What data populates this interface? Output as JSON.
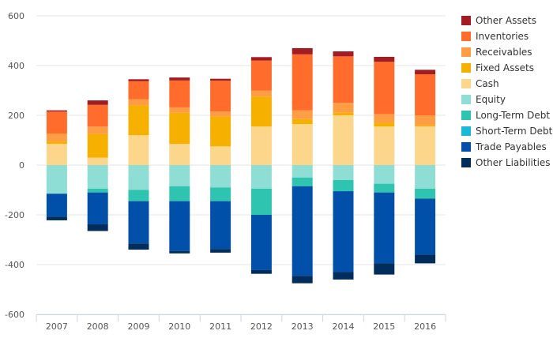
{
  "chart_data": {
    "type": "bar",
    "stacked": true,
    "categories": [
      "2007",
      "2008",
      "2009",
      "2010",
      "2011",
      "2012",
      "2013",
      "2014",
      "2015",
      "2016"
    ],
    "y_ticks": [
      600,
      400,
      200,
      0,
      -200,
      -400,
      -600
    ],
    "y_tick_labels": [
      "600",
      "400",
      "200",
      "0",
      "-200",
      "-400",
      "-600"
    ],
    "ylim": [
      -600,
      600
    ],
    "grid": true,
    "legend_position": "right",
    "title": "",
    "xlabel": "",
    "ylabel": "",
    "series": [
      {
        "name": "Other Assets",
        "color": "#a11d22",
        "values": [
          5,
          18,
          8,
          12,
          8,
          14,
          25,
          20,
          20,
          18
        ]
      },
      {
        "name": "Inventories",
        "color": "#ff6c2c",
        "values": [
          88,
          87,
          72,
          108,
          124,
          120,
          225,
          187,
          210,
          165
        ]
      },
      {
        "name": "Receivables",
        "color": "#ff9d45",
        "values": [
          32,
          30,
          25,
          22,
          20,
          25,
          35,
          40,
          35,
          40
        ]
      },
      {
        "name": "Fixed Assets",
        "color": "#f5b000",
        "values": [
          10,
          95,
          120,
          125,
          120,
          120,
          20,
          10,
          15,
          5
        ]
      },
      {
        "name": "Cash",
        "color": "#fcd68a",
        "values": [
          85,
          30,
          120,
          85,
          75,
          155,
          165,
          200,
          155,
          155
        ]
      },
      {
        "name": "Equity",
        "color": "#8fded5",
        "values": [
          -115,
          -95,
          -100,
          -85,
          -90,
          -95,
          -50,
          -60,
          -75,
          -95
        ]
      },
      {
        "name": "Long-Term Debt",
        "color": "#2ec4b0",
        "values": [
          0,
          -15,
          -45,
          -60,
          -55,
          -105,
          -35,
          -45,
          -35,
          -40
        ]
      },
      {
        "name": "Short-Term Debt",
        "color": "#1cb8d8",
        "values": [
          0,
          0,
          0,
          0,
          0,
          0,
          0,
          0,
          0,
          0
        ]
      },
      {
        "name": "Trade Payables",
        "color": "#0050aa",
        "values": [
          -92,
          -128,
          -170,
          -200,
          -192,
          -222,
          -360,
          -325,
          -285,
          -225
        ]
      },
      {
        "name": "Other Liabilities",
        "color": "#002d5c",
        "values": [
          -15,
          -27,
          -25,
          -10,
          -15,
          -15,
          -30,
          -30,
          -45,
          -35
        ]
      }
    ]
  }
}
